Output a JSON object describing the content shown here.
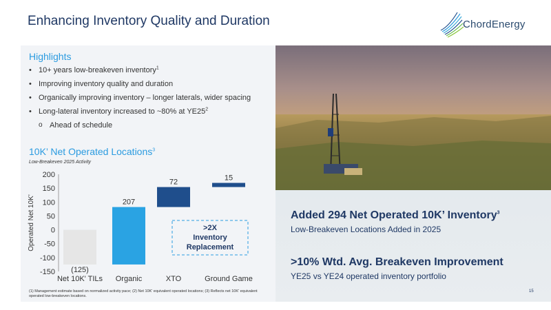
{
  "header": {
    "title": "Enhancing Inventory Quality and Duration",
    "logo_text": "ChordEnergy"
  },
  "highlights": {
    "title": "Highlights",
    "items": [
      {
        "text": "10+ years low-breakeven inventory",
        "sup": "1"
      },
      {
        "text": "Improving inventory quality and duration",
        "sup": ""
      },
      {
        "text": "Organically improving inventory – longer laterals, wider spacing",
        "sup": ""
      },
      {
        "text": "Long-lateral inventory increased to ~80% at YE25",
        "sup": "2"
      },
      {
        "text": "Ahead of schedule",
        "sup": "",
        "sub": true
      }
    ]
  },
  "chart_section": {
    "title": "10K’ Net Operated Locations",
    "title_sup": "3",
    "subtitle": "Low-Breakeven 2025 Activity"
  },
  "chart_data": {
    "type": "bar",
    "subtype": "waterfall",
    "categories": [
      "Net 10K' TILs",
      "Organic",
      "XTO",
      "Ground Game"
    ],
    "values": [
      -125,
      207,
      72,
      15
    ],
    "labels": [
      "(125)",
      "207",
      "72",
      "15"
    ],
    "ylabel": "Operated Net 10K'",
    "ylim": [
      -150,
      200
    ],
    "yticks": [
      200,
      150,
      100,
      50,
      0,
      -50,
      -100,
      -150
    ],
    "colors": [
      "#e6e6e6",
      "#2aa3e3",
      "#1f4e8c",
      "#1f4e8c"
    ],
    "annotation": ">2X Inventory Replacement",
    "annotation_lines": [
      ">2X",
      "Inventory",
      "Replacement"
    ]
  },
  "footnote": "(1) Management estimate based on normalized activity pace; (2) Net 10K' equivalent operated locations; (3) Reflects net 10K' equivalent operated low-breakeven locations.",
  "right_panel": {
    "headline1": "Added 294 Net Operated 10K’ Inventory",
    "headline1_sup": "3",
    "sub1": "Low-Breakeven Locations Added in 2025",
    "headline2": ">10% Wtd. Avg. Breakeven Improvement",
    "sub2": "YE25 vs YE24 operated inventory portfolio"
  },
  "page_number": "15"
}
